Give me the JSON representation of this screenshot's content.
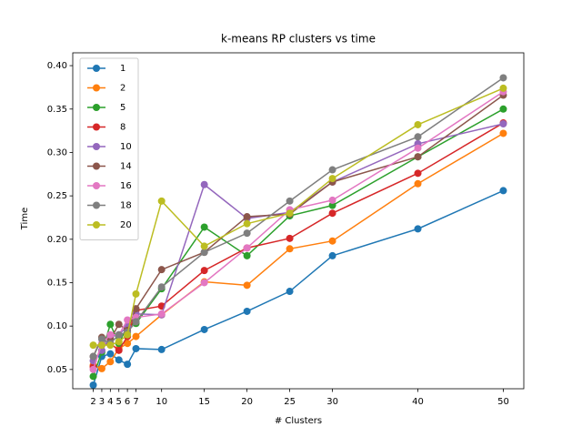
{
  "chart_data": {
    "type": "line",
    "title": "k-means RP clusters vs time",
    "x_label": "# Clusters",
    "y_label": "Time",
    "x": [
      2,
      3,
      4,
      5,
      6,
      7,
      10,
      15,
      20,
      25,
      30,
      40,
      50
    ],
    "series": [
      {
        "name": "1",
        "color": "#1f77b4",
        "values": [
          0.032,
          0.065,
          0.068,
          0.061,
          0.056,
          0.074,
          0.073,
          0.096,
          0.117,
          0.14,
          0.181,
          0.212,
          0.256
        ]
      },
      {
        "name": "2",
        "color": "#ff7f0e",
        "values": [
          0.055,
          0.051,
          0.059,
          0.074,
          0.08,
          0.088,
          0.113,
          0.151,
          0.147,
          0.189,
          0.198,
          0.264,
          0.322
        ]
      },
      {
        "name": "5",
        "color": "#2ca02c",
        "values": [
          0.042,
          0.07,
          0.102,
          0.08,
          0.1,
          0.103,
          0.143,
          0.214,
          0.181,
          0.227,
          0.239,
          0.295,
          0.35
        ]
      },
      {
        "name": "8",
        "color": "#d62728",
        "values": [
          0.053,
          0.078,
          0.08,
          0.072,
          0.088,
          0.118,
          0.123,
          0.164,
          0.19,
          0.201,
          0.23,
          0.276,
          0.334
        ]
      },
      {
        "name": "10",
        "color": "#9467bd",
        "values": [
          0.06,
          0.072,
          0.088,
          0.09,
          0.1,
          0.114,
          0.113,
          0.263,
          0.224,
          0.231,
          0.266,
          0.31,
          0.333
        ]
      },
      {
        "name": "14",
        "color": "#8c564b",
        "values": [
          0.065,
          0.087,
          0.085,
          0.102,
          0.095,
          0.12,
          0.165,
          0.185,
          0.226,
          0.229,
          0.266,
          0.295,
          0.366
        ]
      },
      {
        "name": "16",
        "color": "#e377c2",
        "values": [
          0.05,
          0.08,
          0.09,
          0.09,
          0.107,
          0.11,
          0.114,
          0.15,
          0.19,
          0.234,
          0.245,
          0.305,
          0.37
        ]
      },
      {
        "name": "18",
        "color": "#7f7f7f",
        "values": [
          0.065,
          0.085,
          0.08,
          0.09,
          0.093,
          0.105,
          0.145,
          0.185,
          0.207,
          0.244,
          0.28,
          0.318,
          0.386
        ]
      },
      {
        "name": "20",
        "color": "#bcbd22",
        "values": [
          0.078,
          0.078,
          0.078,
          0.082,
          0.09,
          0.137,
          0.244,
          0.192,
          0.218,
          0.23,
          0.27,
          0.332,
          0.374
        ]
      }
    ],
    "xlim": [
      -0.4,
      52.4
    ],
    "xticks": [
      2,
      3,
      4,
      5,
      6,
      7,
      10,
      15,
      20,
      25,
      30,
      40,
      50
    ],
    "ylim": [
      0.0278,
      0.4148
    ],
    "yticks": [
      0.05,
      {
        "value": 0.1,
        "label": "0.10"
      },
      0.15,
      {
        "value": 0.2,
        "label": "0.20"
      },
      0.25,
      {
        "value": 0.3,
        "label": "0.30"
      },
      0.35,
      {
        "value": 0.4,
        "label": "0.40"
      }
    ],
    "legend": "upper left",
    "grid": false
  }
}
